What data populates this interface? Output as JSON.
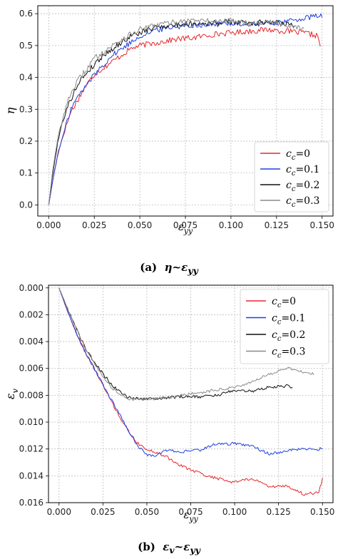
{
  "captions": [
    {
      "label": "(a)",
      "lhs": "η",
      "tilde": "~",
      "rhs": "ε",
      "rhs_sub": "yy"
    },
    {
      "label": "(b)",
      "lhs": "ε",
      "lhs_sub": "v",
      "tilde": "~",
      "rhs": "ε",
      "rhs_sub": "yy"
    }
  ],
  "chart_data": [
    {
      "type": "line",
      "title": "",
      "xlabel": "ε_yy",
      "ylabel": "η",
      "xlim": [
        -0.006,
        0.156
      ],
      "ylim": [
        -0.035,
        0.625
      ],
      "x_ticks": [
        "0.000",
        "0.025",
        "0.050",
        "0.075",
        "0.100",
        "0.125",
        "0.150"
      ],
      "y_ticks": [
        "0.0",
        "0.1",
        "0.2",
        "0.3",
        "0.4",
        "0.5",
        "0.6"
      ],
      "grid": true,
      "legend_position": "lower-right",
      "series": [
        {
          "name": "c_c=0",
          "color": "#e8262b",
          "end_x": 0.149,
          "points": [
            [
              0.0,
              0.0
            ],
            [
              0.002,
              0.07
            ],
            [
              0.005,
              0.16
            ],
            [
              0.008,
              0.22
            ],
            [
              0.012,
              0.29
            ],
            [
              0.016,
              0.33
            ],
            [
              0.02,
              0.37
            ],
            [
              0.025,
              0.41
            ],
            [
              0.03,
              0.43
            ],
            [
              0.035,
              0.45
            ],
            [
              0.04,
              0.47
            ],
            [
              0.045,
              0.49
            ],
            [
              0.05,
              0.5
            ],
            [
              0.06,
              0.51
            ],
            [
              0.07,
              0.52
            ],
            [
              0.08,
              0.525
            ],
            [
              0.09,
              0.535
            ],
            [
              0.1,
              0.54
            ],
            [
              0.11,
              0.545
            ],
            [
              0.12,
              0.55
            ],
            [
              0.13,
              0.545
            ],
            [
              0.14,
              0.54
            ],
            [
              0.148,
              0.53
            ],
            [
              0.149,
              0.49
            ]
          ]
        },
        {
          "name": "c_c=0.1",
          "color": "#1f3fe0",
          "end_x": 0.15,
          "points": [
            [
              0.0,
              0.0
            ],
            [
              0.002,
              0.07
            ],
            [
              0.005,
              0.16
            ],
            [
              0.008,
              0.22
            ],
            [
              0.012,
              0.3
            ],
            [
              0.016,
              0.34
            ],
            [
              0.02,
              0.37
            ],
            [
              0.025,
              0.41
            ],
            [
              0.03,
              0.44
            ],
            [
              0.035,
              0.47
            ],
            [
              0.04,
              0.49
            ],
            [
              0.045,
              0.51
            ],
            [
              0.05,
              0.53
            ],
            [
              0.06,
              0.55
            ],
            [
              0.07,
              0.56
            ],
            [
              0.08,
              0.565
            ],
            [
              0.09,
              0.565
            ],
            [
              0.1,
              0.57
            ],
            [
              0.11,
              0.565
            ],
            [
              0.12,
              0.57
            ],
            [
              0.13,
              0.575
            ],
            [
              0.14,
              0.585
            ],
            [
              0.15,
              0.595
            ]
          ]
        },
        {
          "name": "c_c=0.2",
          "color": "#111111",
          "end_x": 0.135,
          "points": [
            [
              0.0,
              0.0
            ],
            [
              0.002,
              0.09
            ],
            [
              0.005,
              0.2
            ],
            [
              0.008,
              0.27
            ],
            [
              0.012,
              0.33
            ],
            [
              0.016,
              0.38
            ],
            [
              0.02,
              0.41
            ],
            [
              0.025,
              0.44
            ],
            [
              0.03,
              0.47
            ],
            [
              0.035,
              0.49
            ],
            [
              0.04,
              0.51
            ],
            [
              0.045,
              0.53
            ],
            [
              0.05,
              0.54
            ],
            [
              0.06,
              0.56
            ],
            [
              0.07,
              0.565
            ],
            [
              0.08,
              0.57
            ],
            [
              0.09,
              0.57
            ],
            [
              0.1,
              0.575
            ],
            [
              0.11,
              0.57
            ],
            [
              0.12,
              0.575
            ],
            [
              0.13,
              0.57
            ],
            [
              0.135,
              0.565
            ]
          ]
        },
        {
          "name": "c_c=0.3",
          "color": "#8a8a8a",
          "end_x": 0.14,
          "points": [
            [
              0.0,
              0.0
            ],
            [
              0.002,
              0.1
            ],
            [
              0.005,
              0.21
            ],
            [
              0.008,
              0.28
            ],
            [
              0.012,
              0.35
            ],
            [
              0.016,
              0.39
            ],
            [
              0.02,
              0.42
            ],
            [
              0.025,
              0.46
            ],
            [
              0.03,
              0.48
            ],
            [
              0.035,
              0.5
            ],
            [
              0.04,
              0.52
            ],
            [
              0.045,
              0.535
            ],
            [
              0.05,
              0.55
            ],
            [
              0.06,
              0.565
            ],
            [
              0.07,
              0.575
            ],
            [
              0.08,
              0.58
            ],
            [
              0.09,
              0.575
            ],
            [
              0.1,
              0.58
            ],
            [
              0.11,
              0.57
            ],
            [
              0.12,
              0.575
            ],
            [
              0.13,
              0.565
            ],
            [
              0.14,
              0.555
            ]
          ]
        }
      ]
    },
    {
      "type": "line",
      "title": "",
      "xlabel": "ε_yy",
      "ylabel": "ε_v",
      "xlim": [
        -0.006,
        0.156
      ],
      "ylim": [
        0.016,
        -0.0002
      ],
      "y_inverted": true,
      "x_ticks": [
        "0.000",
        "0.025",
        "0.050",
        "0.075",
        "0.100",
        "0.125",
        "0.150"
      ],
      "y_ticks": [
        "0.000",
        "0.002",
        "0.004",
        "0.006",
        "0.008",
        "0.010",
        "0.012",
        "0.014",
        "0.016"
      ],
      "grid": true,
      "legend_position": "top-right",
      "series": [
        {
          "name": "c_c=0",
          "color": "#e8262b",
          "end_x": 0.15,
          "points": [
            [
              0.0,
              0.0
            ],
            [
              0.005,
              0.0018
            ],
            [
              0.01,
              0.0034
            ],
            [
              0.015,
              0.0048
            ],
            [
              0.02,
              0.006
            ],
            [
              0.025,
              0.0072
            ],
            [
              0.03,
              0.0085
            ],
            [
              0.035,
              0.0097
            ],
            [
              0.04,
              0.0108
            ],
            [
              0.045,
              0.0116
            ],
            [
              0.05,
              0.012
            ],
            [
              0.06,
              0.0125
            ],
            [
              0.07,
              0.0133
            ],
            [
              0.08,
              0.0138
            ],
            [
              0.09,
              0.0142
            ],
            [
              0.1,
              0.0145
            ],
            [
              0.11,
              0.0142
            ],
            [
              0.12,
              0.0148
            ],
            [
              0.13,
              0.0148
            ],
            [
              0.14,
              0.0154
            ],
            [
              0.148,
              0.0152
            ],
            [
              0.15,
              0.0142
            ]
          ]
        },
        {
          "name": "c_c=0.1",
          "color": "#1f3fe0",
          "end_x": 0.15,
          "points": [
            [
              0.0,
              0.0
            ],
            [
              0.005,
              0.0018
            ],
            [
              0.01,
              0.0034
            ],
            [
              0.015,
              0.0048
            ],
            [
              0.02,
              0.006
            ],
            [
              0.025,
              0.0072
            ],
            [
              0.03,
              0.0084
            ],
            [
              0.035,
              0.0095
            ],
            [
              0.04,
              0.0108
            ],
            [
              0.045,
              0.0118
            ],
            [
              0.05,
              0.0124
            ],
            [
              0.055,
              0.0126
            ],
            [
              0.06,
              0.0121
            ],
            [
              0.07,
              0.0122
            ],
            [
              0.08,
              0.0121
            ],
            [
              0.09,
              0.0116
            ],
            [
              0.1,
              0.0116
            ],
            [
              0.11,
              0.0118
            ],
            [
              0.12,
              0.0124
            ],
            [
              0.13,
              0.0121
            ],
            [
              0.14,
              0.012
            ],
            [
              0.15,
              0.012
            ]
          ]
        },
        {
          "name": "c_c=0.2",
          "color": "#111111",
          "end_x": 0.133,
          "points": [
            [
              0.0,
              0.0
            ],
            [
              0.005,
              0.0016
            ],
            [
              0.01,
              0.0031
            ],
            [
              0.015,
              0.0045
            ],
            [
              0.02,
              0.0055
            ],
            [
              0.025,
              0.0064
            ],
            [
              0.03,
              0.0072
            ],
            [
              0.035,
              0.0078
            ],
            [
              0.04,
              0.0082
            ],
            [
              0.05,
              0.0083
            ],
            [
              0.06,
              0.0082
            ],
            [
              0.07,
              0.0081
            ],
            [
              0.08,
              0.0081
            ],
            [
              0.09,
              0.008
            ],
            [
              0.1,
              0.0076
            ],
            [
              0.11,
              0.0077
            ],
            [
              0.12,
              0.0074
            ],
            [
              0.13,
              0.0073
            ],
            [
              0.133,
              0.0074
            ]
          ]
        },
        {
          "name": "c_c=0.3",
          "color": "#8a8a8a",
          "end_x": 0.145,
          "points": [
            [
              0.0,
              0.0
            ],
            [
              0.005,
              0.0016
            ],
            [
              0.01,
              0.0031
            ],
            [
              0.015,
              0.0045
            ],
            [
              0.02,
              0.0056
            ],
            [
              0.025,
              0.0066
            ],
            [
              0.03,
              0.0074
            ],
            [
              0.035,
              0.008
            ],
            [
              0.04,
              0.0083
            ],
            [
              0.05,
              0.0083
            ],
            [
              0.06,
              0.0082
            ],
            [
              0.07,
              0.008
            ],
            [
              0.08,
              0.0078
            ],
            [
              0.09,
              0.0076
            ],
            [
              0.1,
              0.0074
            ],
            [
              0.11,
              0.007
            ],
            [
              0.12,
              0.0064
            ],
            [
              0.13,
              0.006
            ],
            [
              0.14,
              0.0063
            ],
            [
              0.145,
              0.0064
            ]
          ]
        }
      ]
    }
  ]
}
